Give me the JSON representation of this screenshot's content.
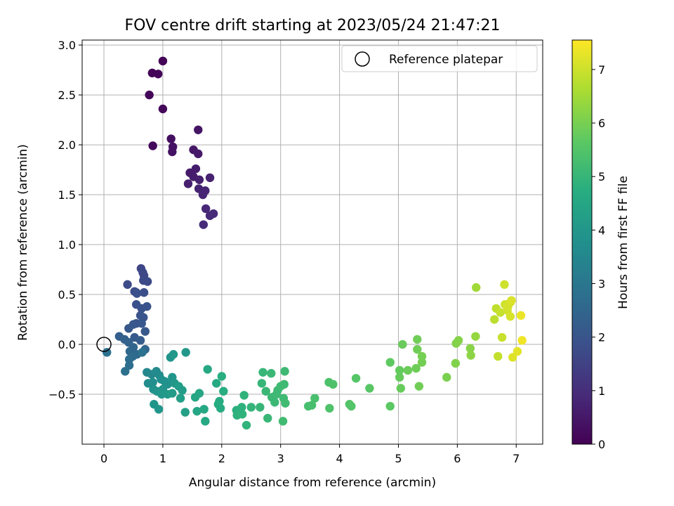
{
  "chart_data": {
    "type": "scatter",
    "title": "FOV centre drift starting at 2023/05/24 21:47:21",
    "xlabel": "Angular distance from reference (arcmin)",
    "ylabel": "Rotation from reference (arcmin)",
    "colorbar_label": "Hours from first FF file",
    "colormap": "viridis",
    "xlim": [
      -0.37,
      7.45
    ],
    "ylim": [
      -1.0,
      3.05
    ],
    "clim": [
      0,
      7.55
    ],
    "xticks": [
      0,
      1,
      2,
      3,
      4,
      5,
      6,
      7
    ],
    "xtick_labels": [
      "0",
      "1",
      "2",
      "3",
      "4",
      "5",
      "6",
      "7"
    ],
    "yticks": [
      -0.5,
      0.0,
      0.5,
      1.0,
      1.5,
      2.0,
      2.5,
      3.0
    ],
    "ytick_labels": [
      "−0.5",
      "0.0",
      "0.5",
      "1.0",
      "1.5",
      "2.0",
      "2.5",
      "3.0"
    ],
    "cticks": [
      0,
      1,
      2,
      3,
      4,
      5,
      6,
      7
    ],
    "ctick_labels": [
      "0",
      "1",
      "2",
      "3",
      "4",
      "5",
      "6",
      "7"
    ],
    "grid": true,
    "legend": {
      "position": "top-right",
      "entries": [
        "Reference platepar"
      ]
    },
    "reference_point": [
      0.0,
      0.0
    ],
    "points": [
      [
        1.0,
        2.84,
        0.05
      ],
      [
        0.82,
        2.72,
        0.08
      ],
      [
        0.92,
        2.71,
        0.1
      ],
      [
        0.77,
        2.5,
        0.12
      ],
      [
        1.0,
        2.36,
        0.15
      ],
      [
        0.83,
        1.99,
        0.18
      ],
      [
        1.14,
        2.06,
        0.3
      ],
      [
        1.17,
        1.98,
        0.35
      ],
      [
        1.16,
        1.93,
        0.38
      ],
      [
        1.6,
        2.15,
        0.42
      ],
      [
        1.52,
        1.95,
        0.48
      ],
      [
        1.6,
        1.91,
        0.52
      ],
      [
        1.46,
        1.72,
        0.55
      ],
      [
        1.56,
        1.76,
        0.6
      ],
      [
        1.52,
        1.68,
        0.62
      ],
      [
        1.62,
        1.65,
        0.65
      ],
      [
        1.43,
        1.61,
        0.68
      ],
      [
        1.8,
        1.67,
        0.72
      ],
      [
        1.61,
        1.56,
        0.75
      ],
      [
        1.72,
        1.54,
        0.78
      ],
      [
        1.68,
        1.5,
        0.8
      ],
      [
        1.73,
        1.36,
        0.85
      ],
      [
        1.8,
        1.29,
        0.88
      ],
      [
        1.86,
        1.31,
        0.9
      ],
      [
        1.69,
        1.2,
        0.92
      ],
      [
        0.63,
        0.76,
        1.6
      ],
      [
        0.66,
        0.72,
        1.65
      ],
      [
        0.68,
        0.69,
        1.65
      ],
      [
        0.67,
        0.64,
        1.7
      ],
      [
        0.74,
        0.63,
        1.72
      ],
      [
        0.4,
        0.6,
        1.75
      ],
      [
        0.52,
        0.53,
        1.8
      ],
      [
        0.55,
        0.52,
        1.82
      ],
      [
        0.68,
        0.52,
        1.85
      ],
      [
        0.56,
        0.51,
        1.88
      ],
      [
        0.55,
        0.4,
        1.9
      ],
      [
        0.64,
        0.36,
        1.92
      ],
      [
        0.73,
        0.38,
        1.95
      ],
      [
        0.62,
        0.29,
        1.97
      ],
      [
        0.67,
        0.27,
        2.0
      ],
      [
        0.55,
        0.21,
        2.02
      ],
      [
        0.64,
        0.21,
        2.05
      ],
      [
        0.5,
        0.2,
        2.07
      ],
      [
        0.42,
        0.16,
        2.1
      ],
      [
        0.7,
        0.13,
        2.12
      ],
      [
        0.52,
        0.07,
        2.15
      ],
      [
        0.62,
        0.04,
        2.2
      ],
      [
        0.26,
        0.08,
        2.3
      ],
      [
        0.35,
        0.05,
        2.35
      ],
      [
        0.42,
        0.02,
        2.4
      ],
      [
        0.5,
        -0.03,
        2.45
      ],
      [
        0.7,
        -0.05,
        2.5
      ],
      [
        0.44,
        -0.07,
        2.55
      ],
      [
        0.56,
        -0.1,
        2.6
      ],
      [
        0.49,
        -0.12,
        2.65
      ],
      [
        0.43,
        -0.15,
        2.7
      ],
      [
        0.43,
        -0.21,
        2.75
      ],
      [
        0.36,
        -0.27,
        2.8
      ],
      [
        0.05,
        -0.08,
        2.85
      ],
      [
        0.65,
        -0.08,
        2.9
      ],
      [
        0.73,
        -0.28,
        3.5
      ],
      [
        0.81,
        -0.3,
        3.55
      ],
      [
        0.89,
        -0.27,
        3.6
      ],
      [
        0.94,
        -0.31,
        3.65
      ],
      [
        0.75,
        -0.39,
        3.65
      ],
      [
        0.83,
        -0.38,
        3.7
      ],
      [
        0.97,
        -0.35,
        3.75
      ],
      [
        1.03,
        -0.37,
        3.8
      ],
      [
        1.08,
        -0.4,
        3.85
      ],
      [
        0.84,
        -0.45,
        3.85
      ],
      [
        0.9,
        -0.47,
        3.9
      ],
      [
        1.0,
        -0.45,
        3.9
      ],
      [
        1.16,
        -0.33,
        3.95
      ],
      [
        1.2,
        -0.39,
        4.0
      ],
      [
        1.13,
        -0.13,
        3.95
      ],
      [
        1.18,
        -0.1,
        4.0
      ],
      [
        1.39,
        -0.08,
        4.05
      ],
      [
        0.85,
        -0.6,
        3.95
      ],
      [
        0.93,
        -0.65,
        3.98
      ],
      [
        0.98,
        -0.5,
        4.05
      ],
      [
        1.08,
        -0.5,
        4.1
      ],
      [
        1.16,
        -0.49,
        4.12
      ],
      [
        1.27,
        -0.42,
        4.15
      ],
      [
        1.33,
        -0.46,
        4.2
      ],
      [
        1.3,
        -0.54,
        4.25
      ],
      [
        1.38,
        -0.68,
        4.3
      ],
      [
        1.55,
        -0.53,
        4.45
      ],
      [
        1.62,
        -0.49,
        4.5
      ],
      [
        1.58,
        -0.67,
        4.5
      ],
      [
        1.7,
        -0.65,
        4.55
      ],
      [
        1.72,
        -0.77,
        4.55
      ],
      [
        1.76,
        -0.25,
        4.55
      ],
      [
        1.91,
        -0.39,
        4.6
      ],
      [
        1.96,
        -0.57,
        4.65
      ],
      [
        1.98,
        -0.64,
        4.7
      ],
      [
        1.94,
        -0.6,
        4.68
      ],
      [
        2.03,
        -0.47,
        4.72
      ],
      [
        2.0,
        -0.32,
        4.75
      ],
      [
        2.25,
        -0.66,
        4.8
      ],
      [
        2.26,
        -0.71,
        4.85
      ],
      [
        2.35,
        -0.7,
        4.88
      ],
      [
        2.34,
        -0.63,
        4.85
      ],
      [
        2.38,
        -0.51,
        4.9
      ],
      [
        2.42,
        -0.81,
        4.92
      ],
      [
        2.5,
        -0.63,
        4.95
      ],
      [
        2.65,
        -0.63,
        5.0
      ],
      [
        2.68,
        -0.39,
        5.0
      ],
      [
        2.7,
        -0.28,
        5.02
      ],
      [
        2.75,
        -0.47,
        5.05
      ],
      [
        2.84,
        -0.29,
        5.05
      ],
      [
        2.78,
        -0.74,
        5.05
      ],
      [
        2.85,
        -0.53,
        5.1
      ],
      [
        2.9,
        -0.58,
        5.1
      ],
      [
        2.93,
        -0.5,
        5.12
      ],
      [
        2.95,
        -0.46,
        5.12
      ],
      [
        3.0,
        -0.42,
        5.15
      ],
      [
        3.06,
        -0.4,
        5.15
      ],
      [
        3.07,
        -0.27,
        5.15
      ],
      [
        3.05,
        -0.54,
        5.15
      ],
      [
        3.08,
        -0.59,
        5.18
      ],
      [
        3.04,
        -0.77,
        5.2
      ],
      [
        3.47,
        -0.62,
        5.3
      ],
      [
        3.53,
        -0.61,
        5.32
      ],
      [
        3.58,
        -0.54,
        5.35
      ],
      [
        3.82,
        -0.38,
        5.4
      ],
      [
        3.89,
        -0.4,
        5.42
      ],
      [
        3.83,
        -0.64,
        5.45
      ],
      [
        4.17,
        -0.6,
        5.5
      ],
      [
        4.2,
        -0.62,
        5.52
      ],
      [
        4.28,
        -0.34,
        5.55
      ],
      [
        4.51,
        -0.44,
        5.6
      ],
      [
        4.86,
        -0.62,
        5.65
      ],
      [
        4.86,
        -0.18,
        5.7
      ],
      [
        5.02,
        -0.26,
        5.75
      ],
      [
        5.02,
        -0.33,
        5.78
      ],
      [
        5.04,
        -0.44,
        5.8
      ],
      [
        5.07,
        0.0,
        5.82
      ],
      [
        5.16,
        -0.26,
        5.85
      ],
      [
        5.3,
        -0.24,
        5.88
      ],
      [
        5.32,
        0.05,
        5.9
      ],
      [
        5.32,
        -0.05,
        5.9
      ],
      [
        5.35,
        -0.42,
        5.92
      ],
      [
        5.4,
        -0.18,
        5.95
      ],
      [
        5.4,
        -0.12,
        5.97
      ],
      [
        5.82,
        -0.33,
        6.05
      ],
      [
        5.97,
        -0.19,
        6.1
      ],
      [
        5.98,
        0.01,
        6.12
      ],
      [
        6.02,
        0.04,
        6.15
      ],
      [
        6.22,
        -0.04,
        6.2
      ],
      [
        6.23,
        -0.11,
        6.25
      ],
      [
        6.31,
        0.08,
        6.35
      ],
      [
        6.32,
        0.57,
        6.5
      ],
      [
        6.63,
        0.25,
        6.8
      ],
      [
        6.66,
        0.36,
        6.85
      ],
      [
        6.69,
        -0.12,
        6.88
      ],
      [
        6.73,
        0.32,
        6.92
      ],
      [
        6.76,
        0.07,
        6.95
      ],
      [
        6.8,
        0.6,
        7.0
      ],
      [
        6.81,
        0.4,
        7.02
      ],
      [
        6.85,
        0.34,
        7.05
      ],
      [
        6.86,
        0.38,
        7.08
      ],
      [
        6.9,
        0.42,
        7.1
      ],
      [
        6.9,
        0.28,
        7.12
      ],
      [
        6.92,
        0.44,
        7.15
      ],
      [
        6.94,
        -0.13,
        7.2
      ],
      [
        7.02,
        -0.07,
        7.25
      ],
      [
        7.08,
        0.29,
        7.35
      ],
      [
        7.1,
        0.04,
        7.4
      ]
    ]
  }
}
